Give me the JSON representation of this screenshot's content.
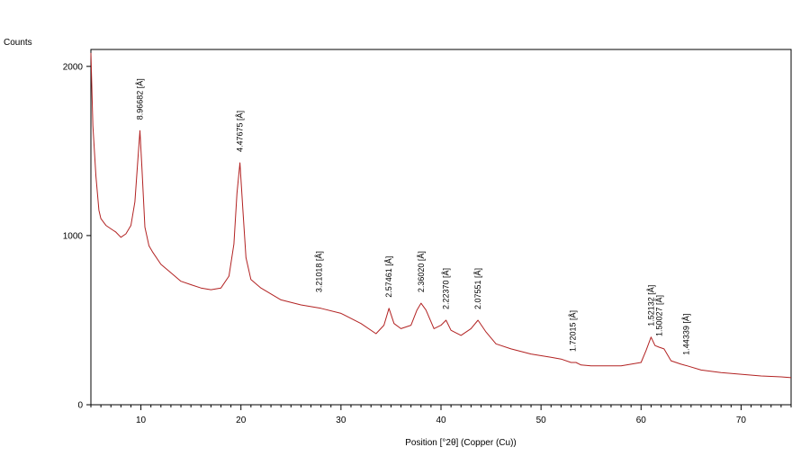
{
  "chart_data": {
    "type": "line",
    "title": "",
    "ylabel": "Counts",
    "xlabel": "Position [°2θ] (Copper (Cu))",
    "xlim": [
      5,
      75
    ],
    "ylim": [
      0,
      2100
    ],
    "grid": false,
    "legend": "none",
    "line_color": "#b22222",
    "x_ticks": [
      10,
      20,
      30,
      40,
      50,
      60,
      70
    ],
    "x_tick_labels": [
      "10",
      "20",
      "30",
      "40",
      "50",
      "60",
      "70"
    ],
    "y_ticks": [
      0,
      1000,
      2000
    ],
    "y_tick_labels": [
      "0",
      "1000",
      "2000"
    ],
    "series": [
      {
        "x": [
          5.0,
          5.2,
          5.5,
          5.8,
          6.0,
          6.5,
          7.0,
          7.5,
          8.0,
          8.5,
          9.0,
          9.4,
          9.7,
          9.9,
          10.1,
          10.4,
          10.8,
          11.2,
          12.0,
          13.0,
          14.0,
          15.0,
          16.0,
          17.0,
          18.0,
          18.8,
          19.3,
          19.6,
          19.9,
          20.2,
          20.5,
          21.0,
          22.0,
          24.0,
          26.0,
          28.0,
          30.0,
          32.0,
          33.5,
          34.3,
          34.8,
          35.3,
          36.0,
          37.0,
          37.6,
          38.0,
          38.5,
          39.3,
          40.0,
          40.5,
          41.0,
          42.0,
          43.0,
          43.7,
          44.5,
          45.5,
          47.0,
          49.0,
          51.0,
          52.0,
          53.0,
          53.5,
          54.0,
          55.0,
          58.0,
          60.0,
          60.5,
          61.0,
          61.4,
          61.8,
          62.3,
          63.0,
          64.0,
          64.6,
          66.0,
          68.0,
          70.0,
          72.0,
          74.0,
          75.0
        ],
        "y": [
          2080,
          1650,
          1350,
          1150,
          1100,
          1060,
          1040,
          1020,
          990,
          1010,
          1060,
          1200,
          1450,
          1620,
          1400,
          1050,
          940,
          900,
          830,
          780,
          730,
          710,
          690,
          680,
          690,
          760,
          950,
          1250,
          1430,
          1150,
          870,
          740,
          690,
          620,
          590,
          570,
          540,
          480,
          420,
          470,
          570,
          480,
          450,
          470,
          560,
          600,
          560,
          450,
          470,
          500,
          440,
          410,
          450,
          500,
          430,
          360,
          330,
          300,
          280,
          270,
          250,
          250,
          235,
          230,
          230,
          250,
          320,
          400,
          350,
          340,
          330,
          260,
          240,
          230,
          205,
          190,
          180,
          170,
          165,
          160
        ]
      }
    ],
    "peaks": [
      {
        "x": 9.9,
        "y": 1620,
        "label": "8.96682 [Å]"
      },
      {
        "x": 19.9,
        "y": 1430,
        "label": "4.47675 [Å]"
      },
      {
        "x": 27.8,
        "y": 600,
        "label": "3.21018 [Å]"
      },
      {
        "x": 34.8,
        "y": 570,
        "label": "2.57461 [Å]"
      },
      {
        "x": 38.0,
        "y": 600,
        "label": "2.36020 [Å]"
      },
      {
        "x": 40.5,
        "y": 500,
        "label": "2.22370 [Å]"
      },
      {
        "x": 43.7,
        "y": 500,
        "label": "2.07551 [Å]"
      },
      {
        "x": 53.2,
        "y": 250,
        "label": "1.72015 [Å]"
      },
      {
        "x": 61.0,
        "y": 400,
        "label": "1.52132 [Å]"
      },
      {
        "x": 61.8,
        "y": 340,
        "label": "1.50027 [Å]"
      },
      {
        "x": 64.5,
        "y": 230,
        "label": "1.44339 [Å]"
      }
    ]
  }
}
